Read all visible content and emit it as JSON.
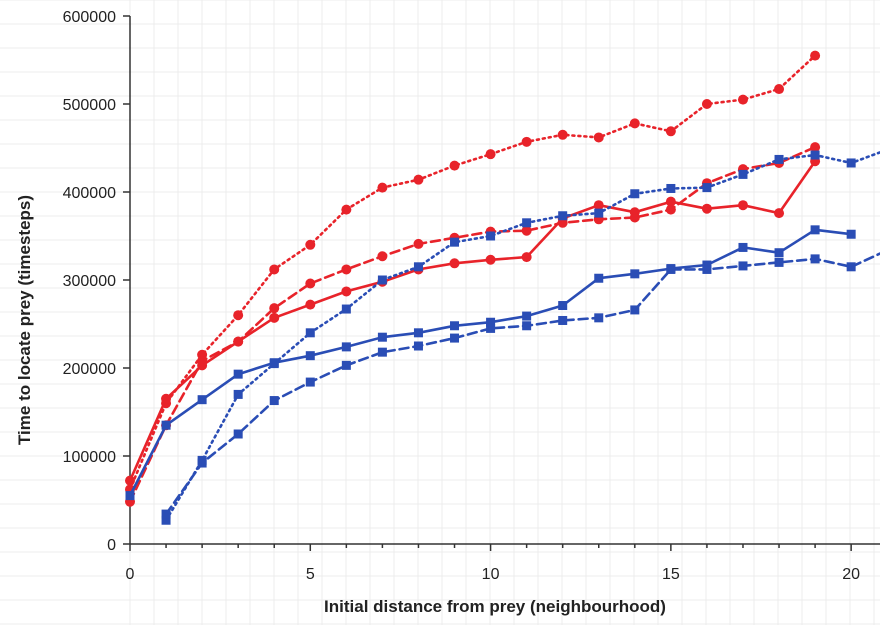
{
  "chart_data": {
    "type": "line",
    "title": "",
    "xlabel": "Initial distance from prey (neighbourhood)",
    "ylabel": "Time to locate prey (timesteps)",
    "xlim": [
      0,
      20.8
    ],
    "ylim": [
      0,
      600000
    ],
    "xticks": [
      0,
      5,
      10,
      15,
      20
    ],
    "yticks": [
      0,
      100000,
      200000,
      300000,
      400000,
      500000,
      600000
    ],
    "grid": false,
    "legend": "none",
    "series": [
      {
        "color": "#e8232a",
        "style": "dotted",
        "marker": "circle",
        "x": [
          0,
          1,
          2,
          3,
          4,
          5,
          6,
          7,
          8,
          9,
          10,
          11,
          12,
          13,
          14,
          15,
          16,
          17,
          18,
          19
        ],
        "values": [
          62000,
          160000,
          215000,
          260000,
          312000,
          340000,
          380000,
          405000,
          414000,
          430000,
          443000,
          457000,
          465000,
          462000,
          478000,
          469000,
          500000,
          505000,
          517000,
          555000
        ]
      },
      {
        "color": "#e8232a",
        "style": "dashed",
        "marker": "circle",
        "x": [
          0,
          1,
          2,
          3,
          4,
          5,
          6,
          7,
          8,
          9,
          10,
          11,
          12,
          13,
          14,
          15,
          16,
          17,
          18,
          19
        ],
        "values": [
          48000,
          135000,
          208000,
          230000,
          268000,
          296000,
          312000,
          327000,
          341000,
          348000,
          355000,
          356000,
          365000,
          369000,
          371000,
          380000,
          410000,
          426000,
          433000,
          451000
        ]
      },
      {
        "color": "#e8232a",
        "style": "solid",
        "marker": "circle",
        "x": [
          0,
          1,
          2,
          3,
          4,
          5,
          6,
          7,
          8,
          9,
          10,
          11,
          12,
          13,
          14,
          15,
          16,
          17,
          18,
          19
        ],
        "values": [
          72000,
          165000,
          203000,
          230000,
          257000,
          272000,
          287000,
          298000,
          312000,
          319000,
          323000,
          326000,
          370000,
          385000,
          377000,
          389000,
          381000,
          385000,
          376000,
          435000
        ]
      },
      {
        "color": "#2a4db5",
        "style": "dotted",
        "marker": "square",
        "x": [
          1,
          2,
          3,
          4,
          5,
          6,
          7,
          8,
          9,
          10,
          11,
          12,
          13,
          14,
          15,
          16,
          17,
          18,
          19,
          20,
          20.8
        ],
        "values": [
          27000,
          95000,
          170000,
          205000,
          240000,
          267000,
          300000,
          315000,
          343000,
          350000,
          365000,
          373000,
          376000,
          398000,
          404000,
          405000,
          420000,
          437000,
          442000,
          433000,
          445000
        ]
      },
      {
        "color": "#2a4db5",
        "style": "dashed",
        "marker": "square",
        "x": [
          1,
          2,
          3,
          4,
          5,
          6,
          7,
          8,
          9,
          10,
          11,
          12,
          13,
          14,
          15,
          16,
          17,
          18,
          19,
          20,
          20.8
        ],
        "values": [
          34000,
          92000,
          125000,
          163000,
          184000,
          203000,
          218000,
          225000,
          234000,
          245000,
          248000,
          254000,
          257000,
          266000,
          312000,
          312000,
          316000,
          320000,
          324000,
          315000,
          330000
        ]
      },
      {
        "color": "#2a4db5",
        "style": "solid",
        "marker": "square",
        "x": [
          0,
          1,
          2,
          3,
          4,
          5,
          6,
          7,
          8,
          9,
          10,
          11,
          12,
          13,
          14,
          15,
          16,
          17,
          18,
          19,
          20
        ],
        "values": [
          55000,
          135000,
          164000,
          193000,
          206000,
          214000,
          224000,
          235000,
          240000,
          248000,
          252000,
          259000,
          271000,
          302000,
          307000,
          313000,
          317000,
          337000,
          331000,
          357000,
          352000
        ]
      }
    ]
  }
}
